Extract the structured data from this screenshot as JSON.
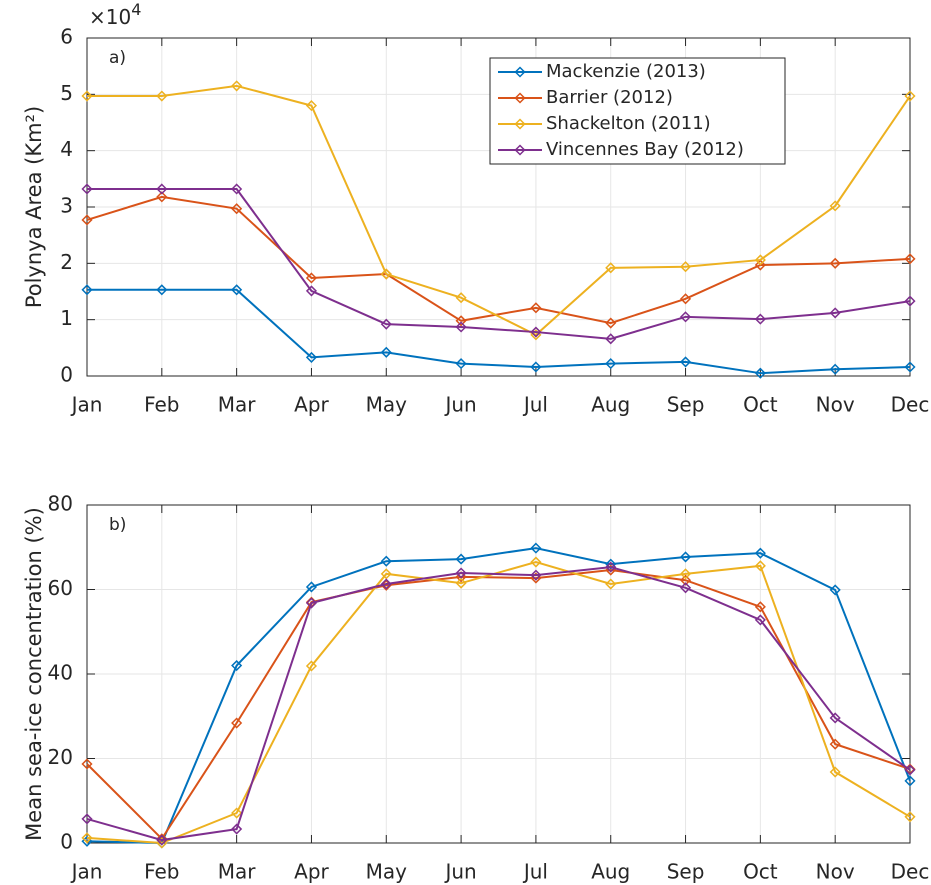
{
  "chart_data": [
    {
      "type": "line",
      "panel_label": "a)",
      "ylabel": "Polynya Area (Km²)",
      "y_multiplier": "×10",
      "y_multiplier_power": "4",
      "categories": [
        "Jan",
        "Feb",
        "Mar",
        "Apr",
        "May",
        "Jun",
        "Jul",
        "Aug",
        "Sep",
        "Oct",
        "Nov",
        "Dec"
      ],
      "ylim": [
        0,
        6
      ],
      "yticks": [
        0,
        1,
        2,
        3,
        4,
        5,
        6
      ],
      "grid": true,
      "legend": "top-right",
      "series": [
        {
          "name": "Mackenzie (2013)",
          "color": "#0072bd",
          "values": [
            1.53,
            1.53,
            1.53,
            0.33,
            0.42,
            0.22,
            0.16,
            0.22,
            0.25,
            0.05,
            0.12,
            0.16
          ]
        },
        {
          "name": "Barrier (2012)",
          "color": "#d95319",
          "values": [
            2.77,
            3.18,
            2.97,
            1.74,
            1.81,
            0.98,
            1.21,
            0.94,
            1.37,
            1.97,
            2.0,
            2.08
          ]
        },
        {
          "name": "Shackelton (2011)",
          "color": "#edb120",
          "values": [
            4.97,
            4.97,
            5.15,
            4.8,
            1.81,
            1.39,
            0.73,
            1.92,
            1.94,
            2.06,
            3.02,
            4.97
          ]
        },
        {
          "name": "Vincennes Bay (2012)",
          "color": "#7e2f8e",
          "values": [
            3.32,
            3.32,
            3.32,
            1.51,
            0.92,
            0.87,
            0.78,
            0.66,
            1.05,
            1.01,
            1.12,
            1.33
          ]
        }
      ]
    },
    {
      "type": "line",
      "panel_label": "b)",
      "ylabel": "Mean sea-ice concentration (%)",
      "categories": [
        "Jan",
        "Feb",
        "Mar",
        "Apr",
        "May",
        "Jun",
        "Jul",
        "Aug",
        "Sep",
        "Oct",
        "Nov",
        "Dec"
      ],
      "ylim": [
        0,
        80
      ],
      "yticks": [
        0,
        20,
        40,
        60,
        80
      ],
      "grid": true,
      "series": [
        {
          "color": "#0072bd",
          "values": [
            0.4,
            0,
            42,
            60.6,
            66.7,
            67.2,
            69.8,
            66,
            67.7,
            68.6,
            59.9,
            14.7
          ]
        },
        {
          "color": "#d95319",
          "values": [
            18.7,
            1,
            28.4,
            57,
            61,
            63,
            62.7,
            64.6,
            62.2,
            55.9,
            23.4,
            17.5
          ]
        },
        {
          "color": "#edb120",
          "values": [
            1.2,
            0,
            7.1,
            41.9,
            63.7,
            61.5,
            66.5,
            61.3,
            63.7,
            65.6,
            16.8,
            6.2
          ]
        },
        {
          "color": "#7e2f8e",
          "values": [
            5.7,
            0.7,
            3.3,
            56.8,
            61.3,
            63.9,
            63.4,
            65.3,
            60.4,
            52.8,
            29.6,
            17.3
          ]
        }
      ]
    }
  ]
}
